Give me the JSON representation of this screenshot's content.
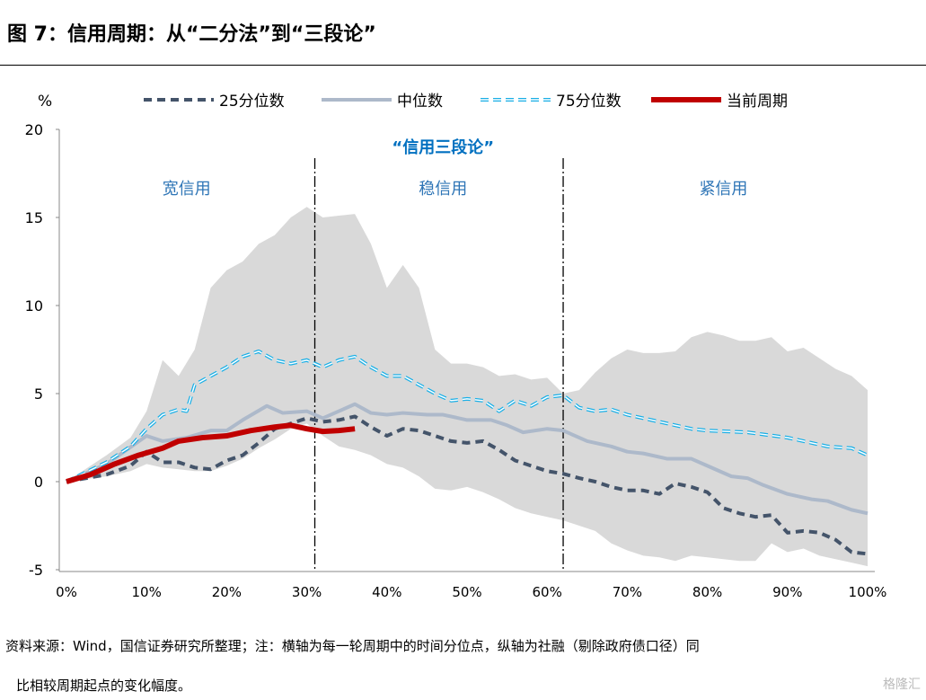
{
  "title": "图 7：信用周期：从“二分法”到“三段论”",
  "footer": {
    "line1": "资料来源：Wind，国信证券研究所整理；注：横轴为每一轮周期中的时间分位点，纵轴为社融（剔除政府债口径）同",
    "line2": "比相较周期起点的变化幅度。"
  },
  "watermark": "格隆汇",
  "chart_data": {
    "type": "line",
    "ylabel": "%",
    "ylim": [
      -5,
      20
    ],
    "yticks": [
      "20",
      "15",
      "10",
      "5",
      "0",
      "-5"
    ],
    "xticks": [
      "0%",
      "10%",
      "20%",
      "30%",
      "40%",
      "50%",
      "60%",
      "70%",
      "80%",
      "90%",
      "100%"
    ],
    "xlim": [
      0,
      100
    ],
    "annotation_title": "“信用三段论”",
    "phases": [
      {
        "label": "宽信用",
        "center": 15
      },
      {
        "label": "稳信用",
        "center": 47
      },
      {
        "label": "紧信用",
        "center": 82
      }
    ],
    "dividers": [
      31,
      62
    ],
    "band": {
      "x": [
        0,
        5,
        8,
        10,
        12,
        14,
        16,
        18,
        20,
        22,
        24,
        26,
        28,
        30,
        32,
        34,
        36,
        38,
        40,
        42,
        44,
        46,
        48,
        50,
        52,
        54,
        56,
        58,
        60,
        62,
        64,
        66,
        68,
        70,
        72,
        74,
        76,
        78,
        80,
        82,
        84,
        86,
        88,
        90,
        92,
        94,
        96,
        98,
        100
      ],
      "upper": [
        0,
        1.5,
        2.5,
        4.0,
        6.9,
        6.0,
        7.5,
        11.0,
        12.0,
        12.5,
        13.5,
        14.0,
        15.0,
        15.6,
        15.0,
        15.1,
        15.2,
        13.5,
        11.0,
        12.3,
        11.0,
        7.5,
        6.7,
        6.7,
        6.5,
        6.0,
        6.1,
        5.8,
        5.9,
        5.0,
        5.2,
        6.2,
        7.0,
        7.5,
        7.3,
        7.3,
        7.4,
        8.2,
        8.5,
        8.3,
        8.0,
        8.0,
        8.2,
        7.4,
        7.6,
        7.0,
        6.4,
        6.0,
        5.2
      ],
      "lower": [
        0,
        0.3,
        0.6,
        1.0,
        0.8,
        0.7,
        0.6,
        0.6,
        0.9,
        1.3,
        1.9,
        2.4,
        3.0,
        3.3,
        2.6,
        2.0,
        1.8,
        1.5,
        1.0,
        0.8,
        0.3,
        -0.4,
        -0.5,
        -0.3,
        -0.6,
        -1.0,
        -1.5,
        -1.8,
        -2.0,
        -2.2,
        -2.5,
        -2.8,
        -3.5,
        -3.9,
        -4.2,
        -4.3,
        -4.5,
        -4.2,
        -4.3,
        -4.4,
        -4.5,
        -4.5,
        -3.5,
        -4.0,
        -3.8,
        -4.2,
        -4.4,
        -4.6,
        -4.8
      ]
    },
    "series": [
      {
        "name": "25分位数",
        "color": "#44546A",
        "style": "dashed",
        "x": [
          0,
          5,
          8,
          10,
          12,
          14,
          16,
          18,
          20,
          22,
          24,
          26,
          28,
          30,
          32,
          34,
          36,
          38,
          40,
          42,
          44,
          46,
          48,
          50,
          52,
          54,
          56,
          58,
          60,
          62,
          64,
          66,
          68,
          70,
          72,
          74,
          76,
          78,
          80,
          82,
          84,
          86,
          88,
          90,
          92,
          94,
          96,
          98,
          100
        ],
        "values": [
          0,
          0.4,
          0.9,
          1.7,
          1.1,
          1.1,
          0.8,
          0.7,
          1.2,
          1.5,
          2.2,
          3.0,
          3.3,
          3.6,
          3.4,
          3.5,
          3.7,
          3.1,
          2.6,
          3.0,
          2.9,
          2.6,
          2.3,
          2.2,
          2.3,
          1.8,
          1.2,
          0.9,
          0.6,
          0.45,
          0.2,
          0.0,
          -0.3,
          -0.5,
          -0.5,
          -0.7,
          -0.1,
          -0.3,
          -0.6,
          -1.5,
          -1.8,
          -2.0,
          -1.9,
          -2.9,
          -2.8,
          -2.9,
          -3.3,
          -4.0,
          -4.1
        ]
      },
      {
        "name": "中位数",
        "color": "#ADB9CA",
        "style": "solid",
        "x": [
          0,
          5,
          10,
          12,
          15,
          18,
          20,
          22,
          25,
          27,
          30,
          32,
          34,
          36,
          38,
          40,
          42,
          45,
          47,
          50,
          53,
          55,
          57,
          60,
          62,
          65,
          68,
          70,
          72,
          75,
          78,
          80,
          83,
          85,
          87,
          90,
          93,
          95,
          98,
          100
        ],
        "values": [
          0,
          1.0,
          2.6,
          2.3,
          2.5,
          2.9,
          2.9,
          3.5,
          4.3,
          3.9,
          4.0,
          3.6,
          4.0,
          4.4,
          3.9,
          3.8,
          3.9,
          3.8,
          3.8,
          3.5,
          3.5,
          3.2,
          2.8,
          3.0,
          2.9,
          2.3,
          2.0,
          1.7,
          1.6,
          1.3,
          1.3,
          0.9,
          0.3,
          0.2,
          -0.2,
          -0.7,
          -1.0,
          -1.1,
          -1.6,
          -1.8
        ]
      },
      {
        "name": "75分位数",
        "color": "#1AAFE6",
        "style": "hollow-dashed",
        "x": [
          0,
          5,
          8,
          10,
          12,
          14,
          15,
          16,
          18,
          20,
          22,
          24,
          26,
          28,
          30,
          32,
          34,
          36,
          38,
          40,
          42,
          44,
          46,
          48,
          50,
          52,
          54,
          56,
          58,
          60,
          62,
          64,
          66,
          68,
          70,
          72,
          75,
          78,
          80,
          85,
          90,
          95,
          98,
          100
        ],
        "values": [
          0,
          1.1,
          2.0,
          3.0,
          3.8,
          4.1,
          4.0,
          5.5,
          6.0,
          6.5,
          7.1,
          7.4,
          6.9,
          6.7,
          6.9,
          6.5,
          6.9,
          7.1,
          6.5,
          6.0,
          6.0,
          5.5,
          5.0,
          4.6,
          4.7,
          4.6,
          4.0,
          4.6,
          4.3,
          4.8,
          4.9,
          4.2,
          4.0,
          4.1,
          3.8,
          3.6,
          3.3,
          3.0,
          2.9,
          2.8,
          2.5,
          2.0,
          1.9,
          1.5
        ]
      },
      {
        "name": "当前周期",
        "color": "#C00000",
        "style": "thick",
        "x": [
          0,
          3,
          6,
          9,
          12,
          14,
          17,
          20,
          23,
          26,
          28,
          30,
          32,
          34,
          36
        ],
        "values": [
          0,
          0.4,
          1.0,
          1.5,
          1.9,
          2.3,
          2.5,
          2.6,
          2.9,
          3.1,
          3.2,
          3.0,
          2.85,
          2.9,
          3.0
        ]
      }
    ]
  }
}
